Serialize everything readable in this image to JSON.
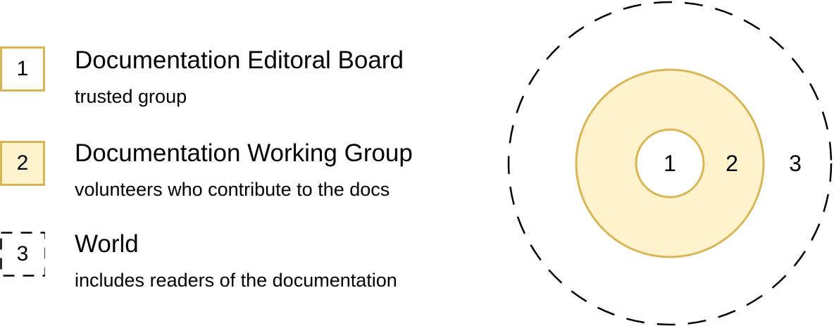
{
  "legend": [
    {
      "number": "1",
      "title": "Documentation Editoral Board",
      "description": "trusted group",
      "style": "solid-border"
    },
    {
      "number": "2",
      "title": "Documentation Working Group",
      "description": "volunteers who contribute to the docs",
      "style": "filled"
    },
    {
      "number": "3",
      "title": "World",
      "description": "includes readers of the documentation",
      "style": "dashed-border"
    }
  ],
  "diagram": {
    "inner_label": "1",
    "middle_label": "2",
    "outer_label": "3"
  },
  "colors": {
    "ring_border": "#D6B656",
    "ring_fill": "#FFF2CC",
    "dashed": "#000000"
  }
}
